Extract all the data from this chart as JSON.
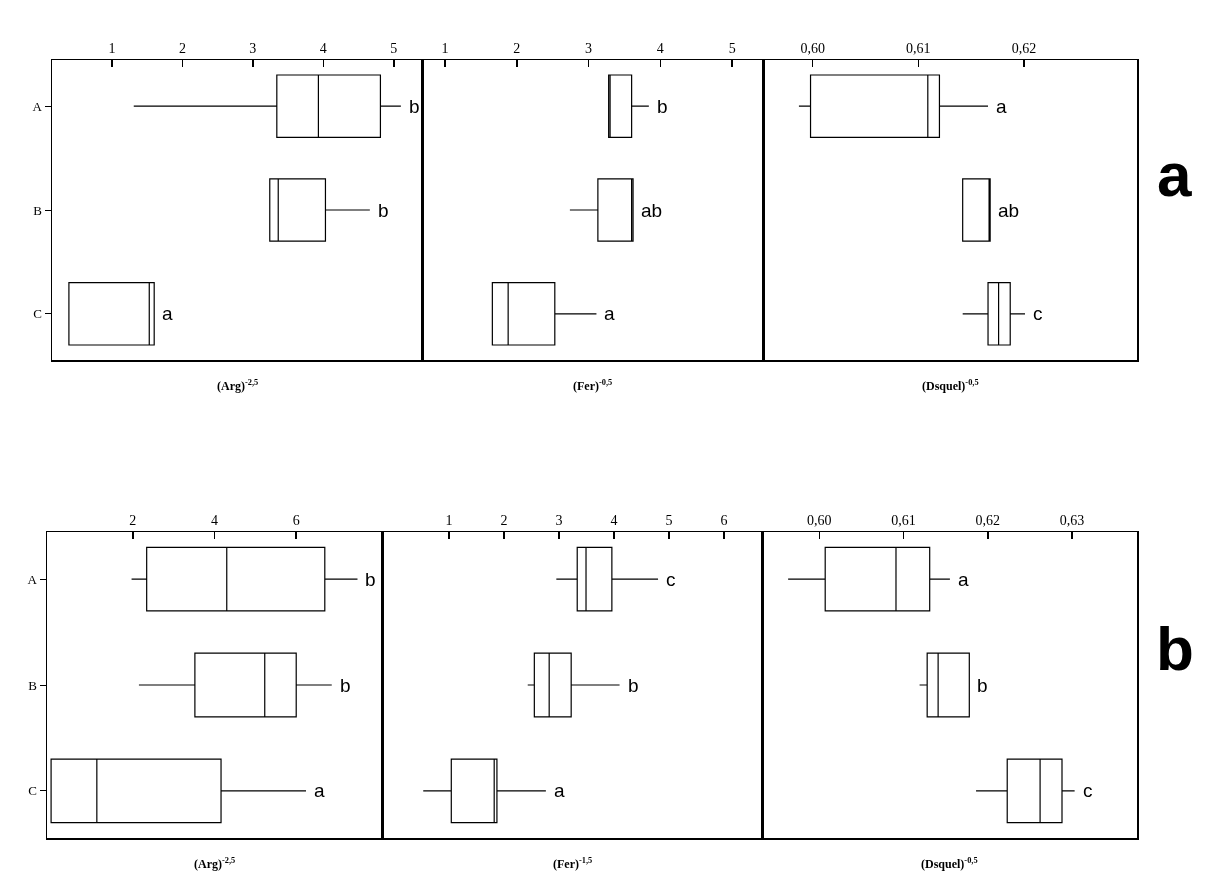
{
  "chart_data": [
    {
      "type": "box",
      "orientation": "horizontal",
      "color": "#000000",
      "categories": [
        "A",
        "B",
        "C"
      ],
      "xlim": [
        0.15,
        5.4
      ],
      "xticks": [
        1,
        2,
        3,
        4,
        5
      ],
      "xlabel": "(Arg)$^{-2,5}$",
      "boxes": [
        {
          "low": 1.31,
          "q1": 3.34,
          "median": 3.93,
          "q3": 4.81,
          "high": 5.1
        },
        {
          "low": 3.24,
          "q1": 3.24,
          "median": 3.36,
          "q3": 4.03,
          "high": 4.66
        },
        {
          "low": 0.39,
          "q1": 0.39,
          "median": 1.53,
          "q3": 1.6,
          "high": 1.6
        }
      ],
      "annotations": [
        "b",
        "b",
        "a"
      ]
    },
    {
      "type": "box",
      "orientation": "horizontal",
      "color": "#000000",
      "categories": [
        null,
        null,
        null
      ],
      "tick_labels": "x",
      "xlim": [
        0.68,
        5.43
      ],
      "xticks": [
        1,
        2,
        3,
        4,
        5
      ],
      "xlabel": "(Fer)$^{-0,5}$",
      "boxes": [
        {
          "low": 3.28,
          "q1": 3.28,
          "median": 3.3,
          "q3": 3.6,
          "high": 3.84
        },
        {
          "low": 2.74,
          "q1": 3.13,
          "median": 3.6,
          "q3": 3.62,
          "high": 3.62
        },
        {
          "low": 1.66,
          "q1": 1.66,
          "median": 1.88,
          "q3": 2.53,
          "high": 3.11
        }
      ],
      "annotations": [
        "b",
        "ab",
        "a"
      ]
    },
    {
      "type": "box",
      "orientation": "horizontal",
      "color": "#000000",
      "categories": [
        null,
        null,
        null
      ],
      "tick_labels": "x",
      "xlim": [
        0.5953,
        0.6307
      ],
      "xticks": [
        {
          "value": 0.6,
          "label": "0,60"
        },
        {
          "value": 0.61,
          "label": "0,61"
        },
        {
          "value": 0.62,
          "label": "0,62"
        }
      ],
      "xlabel": "(Dsquel)$^{-0,5}$",
      "boxes": [
        {
          "low": 0.5987,
          "q1": 0.5998,
          "median": 0.6109,
          "q3": 0.612,
          "high": 0.6166
        },
        {
          "low": 0.6142,
          "q1": 0.6142,
          "median": 0.6167,
          "q3": 0.6168,
          "high": 0.6168
        },
        {
          "low": 0.6142,
          "q1": 0.6166,
          "median": 0.6176,
          "q3": 0.6187,
          "high": 0.6201
        }
      ],
      "annotations": [
        "a",
        "ab",
        "c",
        "a"
      ]
    },
    {
      "type": "box",
      "orientation": "horizontal",
      "color": "#000000",
      "categories": [
        "A",
        "B",
        "C"
      ],
      "xlim": [
        -0.1,
        8.1
      ],
      "xticks": [
        2,
        4,
        6
      ],
      "xlabel": "(Arg)$^{-2,5}$",
      "boxes": [
        {
          "low": 1.97,
          "q1": 2.34,
          "median": 4.3,
          "q3": 6.7,
          "high": 7.5
        },
        {
          "low": 2.15,
          "q1": 3.52,
          "median": 5.23,
          "q3": 6.0,
          "high": 6.87
        },
        {
          "low": 0.0,
          "q1": 0.0,
          "median": 1.12,
          "q3": 4.16,
          "high": 6.24
        }
      ],
      "annotations": [
        "b",
        "b",
        "a"
      ]
    },
    {
      "type": "box",
      "orientation": "horizontal",
      "color": "#000000",
      "categories": [
        null,
        null,
        null
      ],
      "tick_labels": "x",
      "xlim": [
        -0.22,
        6.69
      ],
      "xticks": [
        1,
        2,
        3,
        4,
        5,
        6
      ],
      "xlabel": "(Fer)$^{-1,5}$",
      "boxes": [
        {
          "low": 2.95,
          "q1": 3.33,
          "median": 3.49,
          "q3": 3.96,
          "high": 4.8
        },
        {
          "low": 2.43,
          "q1": 2.55,
          "median": 2.82,
          "q3": 3.22,
          "high": 4.1
        },
        {
          "low": 0.53,
          "q1": 1.04,
          "median": 1.82,
          "q3": 1.87,
          "high": 2.76
        }
      ],
      "annotations": [
        "c",
        "b",
        "a"
      ]
    },
    {
      "type": "box",
      "orientation": "horizontal",
      "color": "#000000",
      "categories": [
        null,
        null,
        null
      ],
      "tick_labels": "x",
      "xlim": [
        0.5932,
        0.6377
      ],
      "xticks": [
        {
          "value": 0.6,
          "label": "0,60"
        },
        {
          "value": 0.61,
          "label": "0,61"
        },
        {
          "value": 0.62,
          "label": "0,62"
        },
        {
          "value": 0.63,
          "label": "0,63"
        }
      ],
      "xlabel": "(Dsquel)$^{-0,5}$",
      "boxes": [
        {
          "low": 0.5963,
          "q1": 0.6007,
          "median": 0.6091,
          "q3": 0.6131,
          "high": 0.6155
        },
        {
          "low": 0.6119,
          "q1": 0.6128,
          "median": 0.6141,
          "q3": 0.6178,
          "high": 0.6178
        },
        {
          "low": 0.6186,
          "q1": 0.6223,
          "median": 0.6262,
          "q3": 0.6288,
          "high": 0.6303
        }
      ],
      "annotations": [
        "a",
        "b",
        "c",
        "b"
      ]
    }
  ]
}
